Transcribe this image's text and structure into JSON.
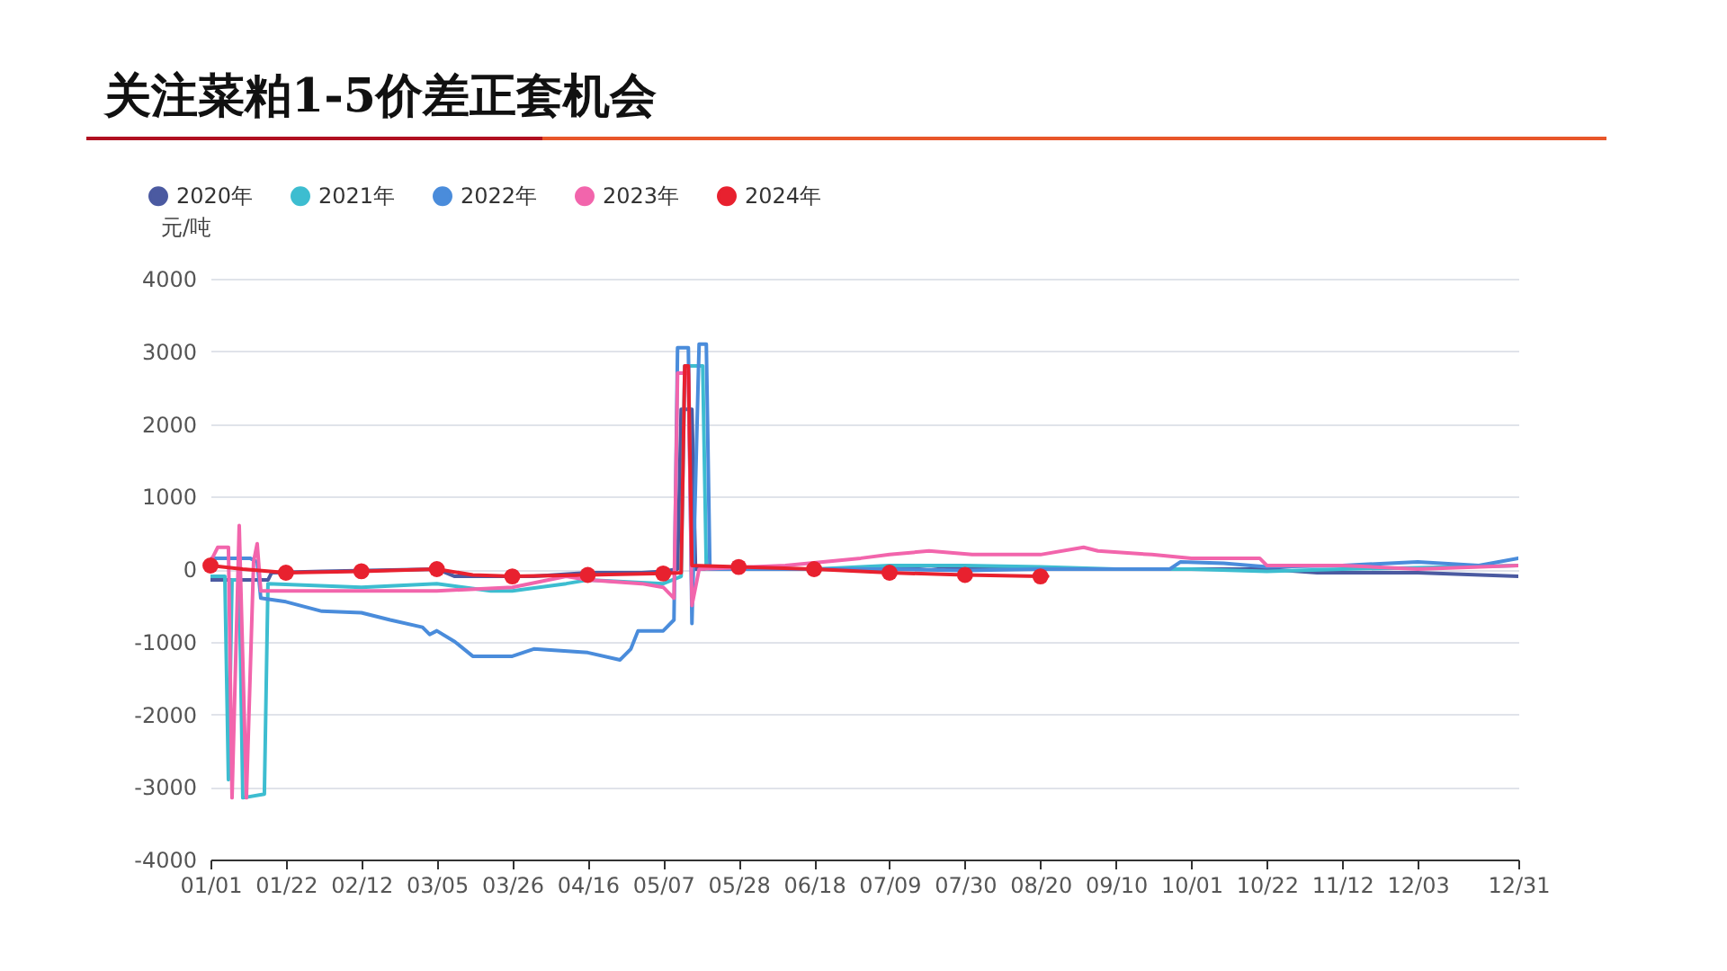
{
  "chart_data": {
    "type": "line",
    "title": "关注菜粕1-5价差正套机会",
    "ylabel": "元/吨",
    "xlim": [
      "--01-01",
      "--12-31"
    ],
    "xticks": [
      {
        "value": "--01-01",
        "label": "01/01"
      },
      {
        "value": "--01-22",
        "label": "01/22"
      },
      {
        "value": "--02-12",
        "label": "02/12"
      },
      {
        "value": "--03-05",
        "label": "03/05"
      },
      {
        "value": "--03-26",
        "label": "03/26"
      },
      {
        "value": "--04-16",
        "label": "04/16"
      },
      {
        "value": "--05-07",
        "label": "05/07"
      },
      {
        "value": "--05-28",
        "label": "05/28"
      },
      {
        "value": "--06-18",
        "label": "06/18"
      },
      {
        "value": "--07-09",
        "label": "07/09"
      },
      {
        "value": "--07-30",
        "label": "07/30"
      },
      {
        "value": "--08-20",
        "label": "08/20"
      },
      {
        "value": "--09-10",
        "label": "09/10"
      },
      {
        "value": "--10-01",
        "label": "10/01"
      },
      {
        "value": "--10-22",
        "label": "10/22"
      },
      {
        "value": "--11-12",
        "label": "11/12"
      },
      {
        "value": "--12-03",
        "label": "12/03"
      },
      {
        "value": "--12-31",
        "label": "12/31"
      }
    ],
    "ylim": [
      -4000,
      4000
    ],
    "yticks": [
      -4000,
      -3000,
      -2000,
      -1000,
      0,
      1000,
      2000,
      3000,
      4000
    ],
    "grid": "y",
    "legend": "top left",
    "series": [
      {
        "name": "2020年",
        "color": "#4b5aa1",
        "marker": "none",
        "x": [
          "--01-01",
          "--01-17",
          "--01-18",
          "--02-01",
          "--03-05",
          "--03-10",
          "--04-01",
          "--04-16",
          "--05-01",
          "--05-07",
          "--05-11",
          "--05-12",
          "--05-15",
          "--05-16",
          "--05-20",
          "--06-18",
          "--07-09",
          "--07-20",
          "--07-30",
          "--08-20",
          "--09-10",
          "--10-01",
          "--10-22",
          "--11-05",
          "--11-12",
          "--12-03",
          "--12-31"
        ],
        "values": [
          -150,
          -150,
          -50,
          -30,
          0,
          -100,
          -100,
          -50,
          -50,
          -30,
          0,
          2200,
          2200,
          0,
          0,
          0,
          0,
          50,
          0,
          0,
          0,
          0,
          0,
          -50,
          -50,
          -50,
          -100
        ]
      },
      {
        "name": "2021年",
        "color": "#3dbdd0",
        "marker": "none",
        "x": [
          "--01-01",
          "--01-05",
          "--01-06",
          "--01-07",
          "--01-09",
          "--01-10",
          "--01-16",
          "--01-17",
          "--02-12",
          "--03-05",
          "--03-20",
          "--03-26",
          "--04-10",
          "--04-16",
          "--05-07",
          "--05-12",
          "--05-13",
          "--05-18",
          "--05-19",
          "--06-18",
          "--07-09",
          "--07-30",
          "--08-20",
          "--09-10",
          "--10-01",
          "--10-22",
          "--11-12",
          "--12-03",
          "--12-31"
        ],
        "values": [
          -100,
          -100,
          -2900,
          -150,
          -150,
          -3150,
          -3100,
          -200,
          -250,
          -200,
          -300,
          -300,
          -200,
          -150,
          -200,
          -100,
          2800,
          2800,
          0,
          0,
          50,
          50,
          30,
          0,
          0,
          -30,
          0,
          20,
          50
        ]
      },
      {
        "name": "2022年",
        "color": "#4a8cdb",
        "marker": "none",
        "x": [
          "--01-01",
          "--01-12",
          "--01-14",
          "--01-15",
          "--01-22",
          "--02-01",
          "--02-12",
          "--02-20",
          "--03-01",
          "--03-03",
          "--03-05",
          "--03-10",
          "--03-15",
          "--03-26",
          "--04-01",
          "--04-16",
          "--04-25",
          "--04-28",
          "--04-30",
          "--05-07",
          "--05-10",
          "--05-11",
          "--05-14",
          "--05-15",
          "--05-17",
          "--05-19",
          "--05-20",
          "--06-18",
          "--07-09",
          "--07-30",
          "--08-20",
          "--09-10",
          "--09-25",
          "--09-28",
          "--10-10",
          "--10-22",
          "--11-12",
          "--12-03",
          "--12-20",
          "--12-31"
        ],
        "values": [
          150,
          150,
          100,
          -400,
          -450,
          -580,
          -600,
          -700,
          -800,
          -900,
          -850,
          -1000,
          -1200,
          -1200,
          -1100,
          -1150,
          -1250,
          -1100,
          -850,
          -850,
          -700,
          3050,
          3050,
          -750,
          3100,
          3100,
          0,
          0,
          0,
          -20,
          0,
          0,
          0,
          100,
          80,
          30,
          50,
          100,
          50,
          150
        ]
      },
      {
        "name": "2023年",
        "color": "#f265ac",
        "marker": "none",
        "x": [
          "--01-01",
          "--01-03",
          "--01-06",
          "--01-07",
          "--01-09",
          "--01-11",
          "--01-13",
          "--01-14",
          "--01-15",
          "--02-12",
          "--03-05",
          "--03-26",
          "--04-10",
          "--04-16",
          "--05-01",
          "--05-07",
          "--05-10",
          "--05-11",
          "--05-14",
          "--05-15",
          "--05-17",
          "--06-10",
          "--07-01",
          "--07-09",
          "--07-20",
          "--08-01",
          "--08-20",
          "--09-01",
          "--09-05",
          "--09-20",
          "--10-01",
          "--10-20",
          "--10-22",
          "--11-12",
          "--12-03",
          "--12-31"
        ],
        "values": [
          100,
          300,
          300,
          -3150,
          600,
          -3150,
          100,
          350,
          -300,
          -300,
          -300,
          -250,
          -100,
          -150,
          -200,
          -250,
          -400,
          2700,
          2700,
          -500,
          0,
          50,
          150,
          200,
          250,
          200,
          200,
          300,
          250,
          200,
          150,
          150,
          50,
          50,
          0,
          50
        ]
      },
      {
        "name": "2024年",
        "color": "#e8212f",
        "marker": "circle",
        "x": [
          "--01-01",
          "--01-10",
          "--01-22",
          "--02-12",
          "--03-05",
          "--03-15",
          "--03-26",
          "--04-16",
          "--05-07",
          "--05-12",
          "--05-13",
          "--05-14",
          "--05-15",
          "--05-28",
          "--06-18",
          "--07-09",
          "--07-30",
          "--08-20",
          "--08-22"
        ],
        "values": [
          50,
          0,
          -50,
          -30,
          0,
          -80,
          -100,
          -80,
          -60,
          -50,
          2800,
          2800,
          50,
          30,
          0,
          -50,
          -80,
          -100,
          -100
        ]
      }
    ]
  }
}
